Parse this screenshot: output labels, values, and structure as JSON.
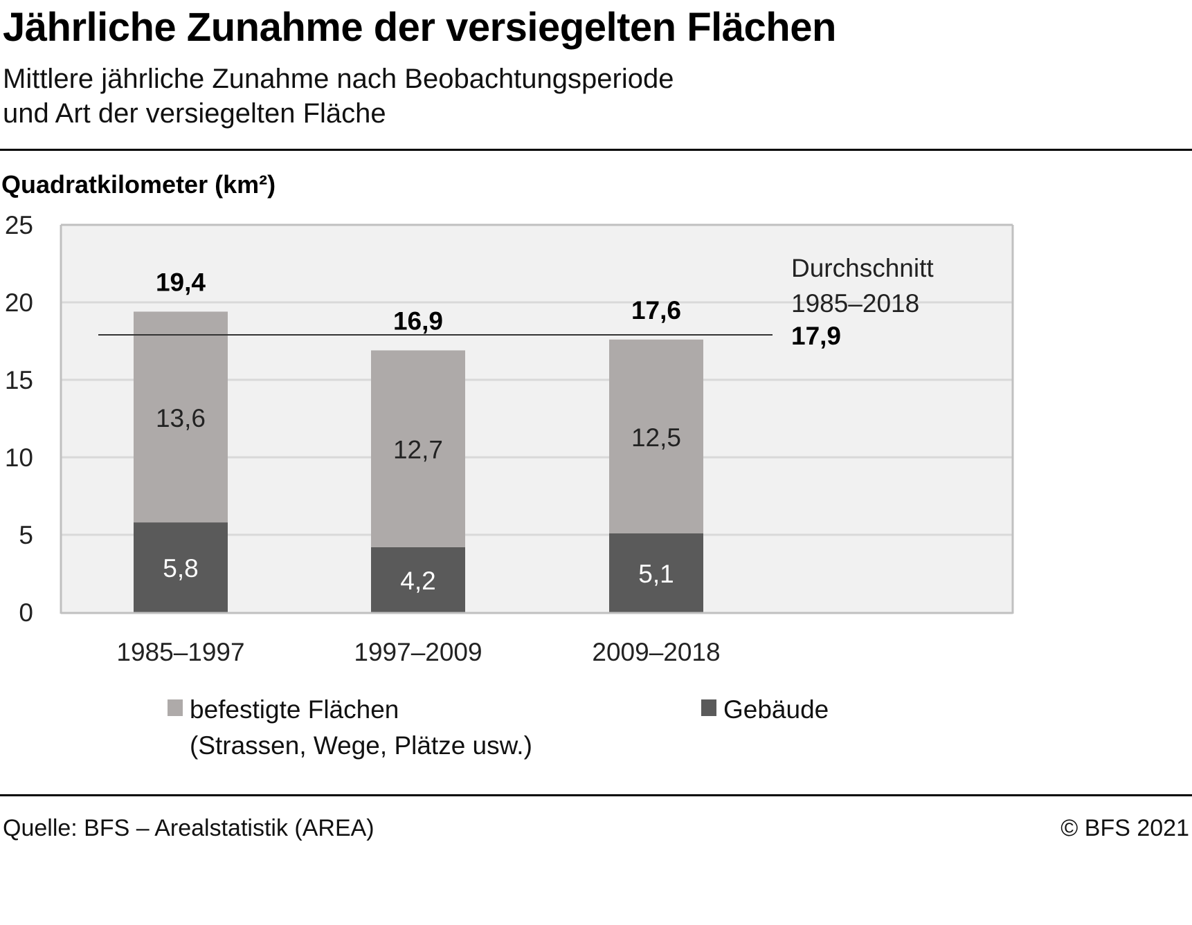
{
  "header": {
    "title": "Jährliche Zunahme der versiegelten Flächen",
    "subtitle_line1": "Mittlere jährliche Zunahme nach Beobachtungsperiode",
    "subtitle_line2": "und Art der versiegelten Fläche"
  },
  "footer": {
    "source": "Quelle: BFS – Arealstatistik (AREA)",
    "copyright": "© BFS 2021"
  },
  "colors": {
    "befestigte": "#aeaaa9",
    "gebaeude": "#5a5a5a",
    "plot_background": "#f1f1f1",
    "gridline": "#d9d9d9",
    "axis": "#c0c0c0",
    "reference_line": "#333333"
  },
  "legend": [
    {
      "key": "befestigte",
      "label_line1": "befestigte Flächen",
      "label_line2": "(Strassen, Wege, Plätze usw.)",
      "color": "#aeaaa9"
    },
    {
      "key": "gebaeude",
      "label_line1": "Gebäude",
      "label_line2": "",
      "color": "#5a5a5a"
    }
  ],
  "chart_data": {
    "type": "bar",
    "stacked": true,
    "title": "Jährliche Zunahme der versiegelten Flächen",
    "subtitle": "Mittlere jährliche Zunahme nach Beobachtungsperiode und Art der versiegelten Fläche",
    "ylabel": "Quadratkilometer (km²)",
    "xlabel": "",
    "ylim": [
      0,
      25
    ],
    "yticks": [
      0,
      5,
      10,
      15,
      20,
      25
    ],
    "grid": true,
    "legend_position": "bottom",
    "categories": [
      "1985–1997",
      "1997–2009",
      "2009–2018"
    ],
    "series": [
      {
        "name": "Gebäude",
        "values": [
          5.8,
          4.2,
          5.1
        ],
        "labels": [
          "5,8",
          "4,2",
          "5,1"
        ]
      },
      {
        "name": "befestigte Flächen (Strassen, Wege, Plätze usw.)",
        "values": [
          13.6,
          12.7,
          12.5
        ],
        "labels": [
          "13,6",
          "12,7",
          "12,5"
        ]
      }
    ],
    "totals": [
      19.4,
      16.9,
      17.6
    ],
    "total_labels": [
      "19,4",
      "16,9",
      "17,6"
    ],
    "reference_line": {
      "value": 17.9,
      "label_line1": "Durchschnitt",
      "label_line2": "1985–2018",
      "value_label": "17,9"
    }
  }
}
